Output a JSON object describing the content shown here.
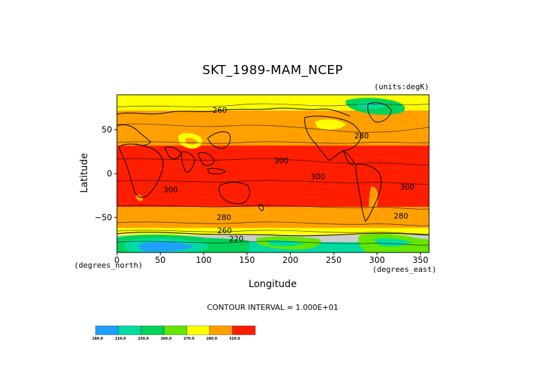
{
  "chart_data": {
    "type": "heatmap",
    "title": "SKT_1989-MAM_NCEP",
    "units_label": "(units:degK)",
    "xlabel": "Longitude",
    "ylabel": "Latitude",
    "x_unit_label": "(degrees_east)",
    "y_unit_label": "(degrees_north)",
    "xlim": [
      0,
      360
    ],
    "ylim": [
      -90,
      90
    ],
    "x_ticks": [
      0,
      50,
      100,
      150,
      200,
      250,
      300,
      350
    ],
    "y_ticks": [
      50,
      0,
      -50
    ],
    "x_tick_labels": [
      "0",
      "50",
      "100",
      "150",
      "200",
      "250",
      "300",
      "350"
    ],
    "y_tick_labels": [
      "50",
      "0",
      "−50"
    ],
    "contour_interval_text": "CONTOUR INTERVAL = 1.000E+01",
    "contour_labels": [
      "260",
      "300",
      "300",
      "300",
      "280",
      "300",
      "280",
      "280",
      "260",
      "220"
    ],
    "bands": [
      {
        "lat_top": 90,
        "lat_bottom": 72,
        "level": "270.0"
      },
      {
        "lat_top": 72,
        "lat_bottom": 62,
        "level": "280.0"
      },
      {
        "lat_top": 62,
        "lat_bottom": 32,
        "level": "280.0"
      },
      {
        "lat_top": 32,
        "lat_bottom": -38,
        "level": "310.0"
      },
      {
        "lat_top": -38,
        "lat_bottom": -62,
        "level": "280.0"
      },
      {
        "lat_top": -62,
        "lat_bottom": -70,
        "level": "270.0"
      },
      {
        "lat_top": -70,
        "lat_bottom": -78,
        "level": "240.0"
      },
      {
        "lat_top": -78,
        "lat_bottom": -90,
        "level": "210.0"
      }
    ],
    "colorbar": {
      "levels": [
        "180.0",
        "210.0",
        "230.0",
        "260.0",
        "270.0",
        "280.0",
        "310.0"
      ],
      "colors": [
        "#1ea0ff",
        "#00dca0",
        "#00d25a",
        "#64e600",
        "#ffff00",
        "#ffa000",
        "#ff1e00"
      ]
    }
  }
}
